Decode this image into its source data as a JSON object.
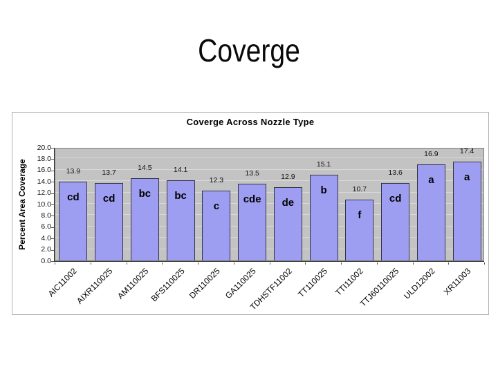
{
  "slide": {
    "title": "Coverge"
  },
  "chart_data": {
    "type": "bar",
    "title": "Coverge Across Nozzle Type",
    "xlabel": "",
    "ylabel": "Percent Area Coverage",
    "ylim": [
      0,
      20
    ],
    "ytick_step": 2,
    "ytick_labels": [
      "0.0",
      "2.0",
      "4.0",
      "6.0",
      "8.0",
      "10.0",
      "12.0",
      "14.0",
      "16.0",
      "18.0",
      "20.0"
    ],
    "grid": true,
    "legend": "none",
    "categories": [
      "AIC11002",
      "AIXR110025",
      "AM110025",
      "BFS110025",
      "DR110025",
      "GA110025",
      "TDHSTF11002",
      "TT110025",
      "TTI11002",
      "TTJ60110025",
      "ULD12002",
      "XR11003"
    ],
    "values": [
      13.9,
      13.7,
      14.5,
      14.1,
      12.3,
      13.5,
      12.9,
      15.1,
      10.7,
      13.6,
      16.9,
      17.4
    ],
    "value_labels": [
      "13.9",
      "13.7",
      "14.5",
      "14.1",
      "12.3",
      "13.5",
      "12.9",
      "15.1",
      "10.7",
      "13.6",
      "16.9",
      "17.4"
    ],
    "significance_letters": [
      "cd",
      "cd",
      "bc",
      "bc",
      "c",
      "cde",
      "de",
      "b",
      "f",
      "cd",
      "a",
      "a"
    ],
    "colors": {
      "bar_fill": "#9d9df2",
      "bar_border": "#333344",
      "plot_bg": "#c3c3c3",
      "gridline": "#d9d9d9",
      "plot_border": "#7a7a7a",
      "axis": "#333333",
      "chart_border": "#b0b0b0",
      "text": "#000000"
    }
  }
}
